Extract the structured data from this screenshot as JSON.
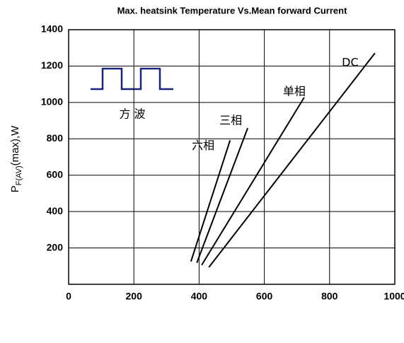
{
  "chart_data": {
    "type": "line",
    "title": "Max. heatsink Temperature Vs.Mean forward Current",
    "y_label": {
      "main": "P",
      "sub": "F(AV)",
      "rest": "(max),W"
    },
    "ylim": [
      0,
      1400
    ],
    "yticks": [
      200,
      400,
      600,
      800,
      1000,
      1200,
      1400
    ],
    "xlim": [
      0,
      1000
    ],
    "xticks": [
      0,
      200,
      400,
      600,
      800,
      1000
    ],
    "grid": true,
    "waveform_label": "方 波",
    "series": [
      {
        "name": "六相",
        "color": "#000000",
        "x": [
          375,
          495
        ],
        "values": [
          125,
          792
        ]
      },
      {
        "name": "三相",
        "color": "#000000",
        "x": [
          393,
          549
        ],
        "values": [
          118,
          859
        ]
      },
      {
        "name": "单相",
        "color": "#000000",
        "x": [
          408,
          722
        ],
        "values": [
          106,
          1027
        ]
      },
      {
        "name": "DC",
        "color": "#000000",
        "x": [
          430,
          939
        ],
        "values": [
          94,
          1271
        ]
      }
    ]
  }
}
